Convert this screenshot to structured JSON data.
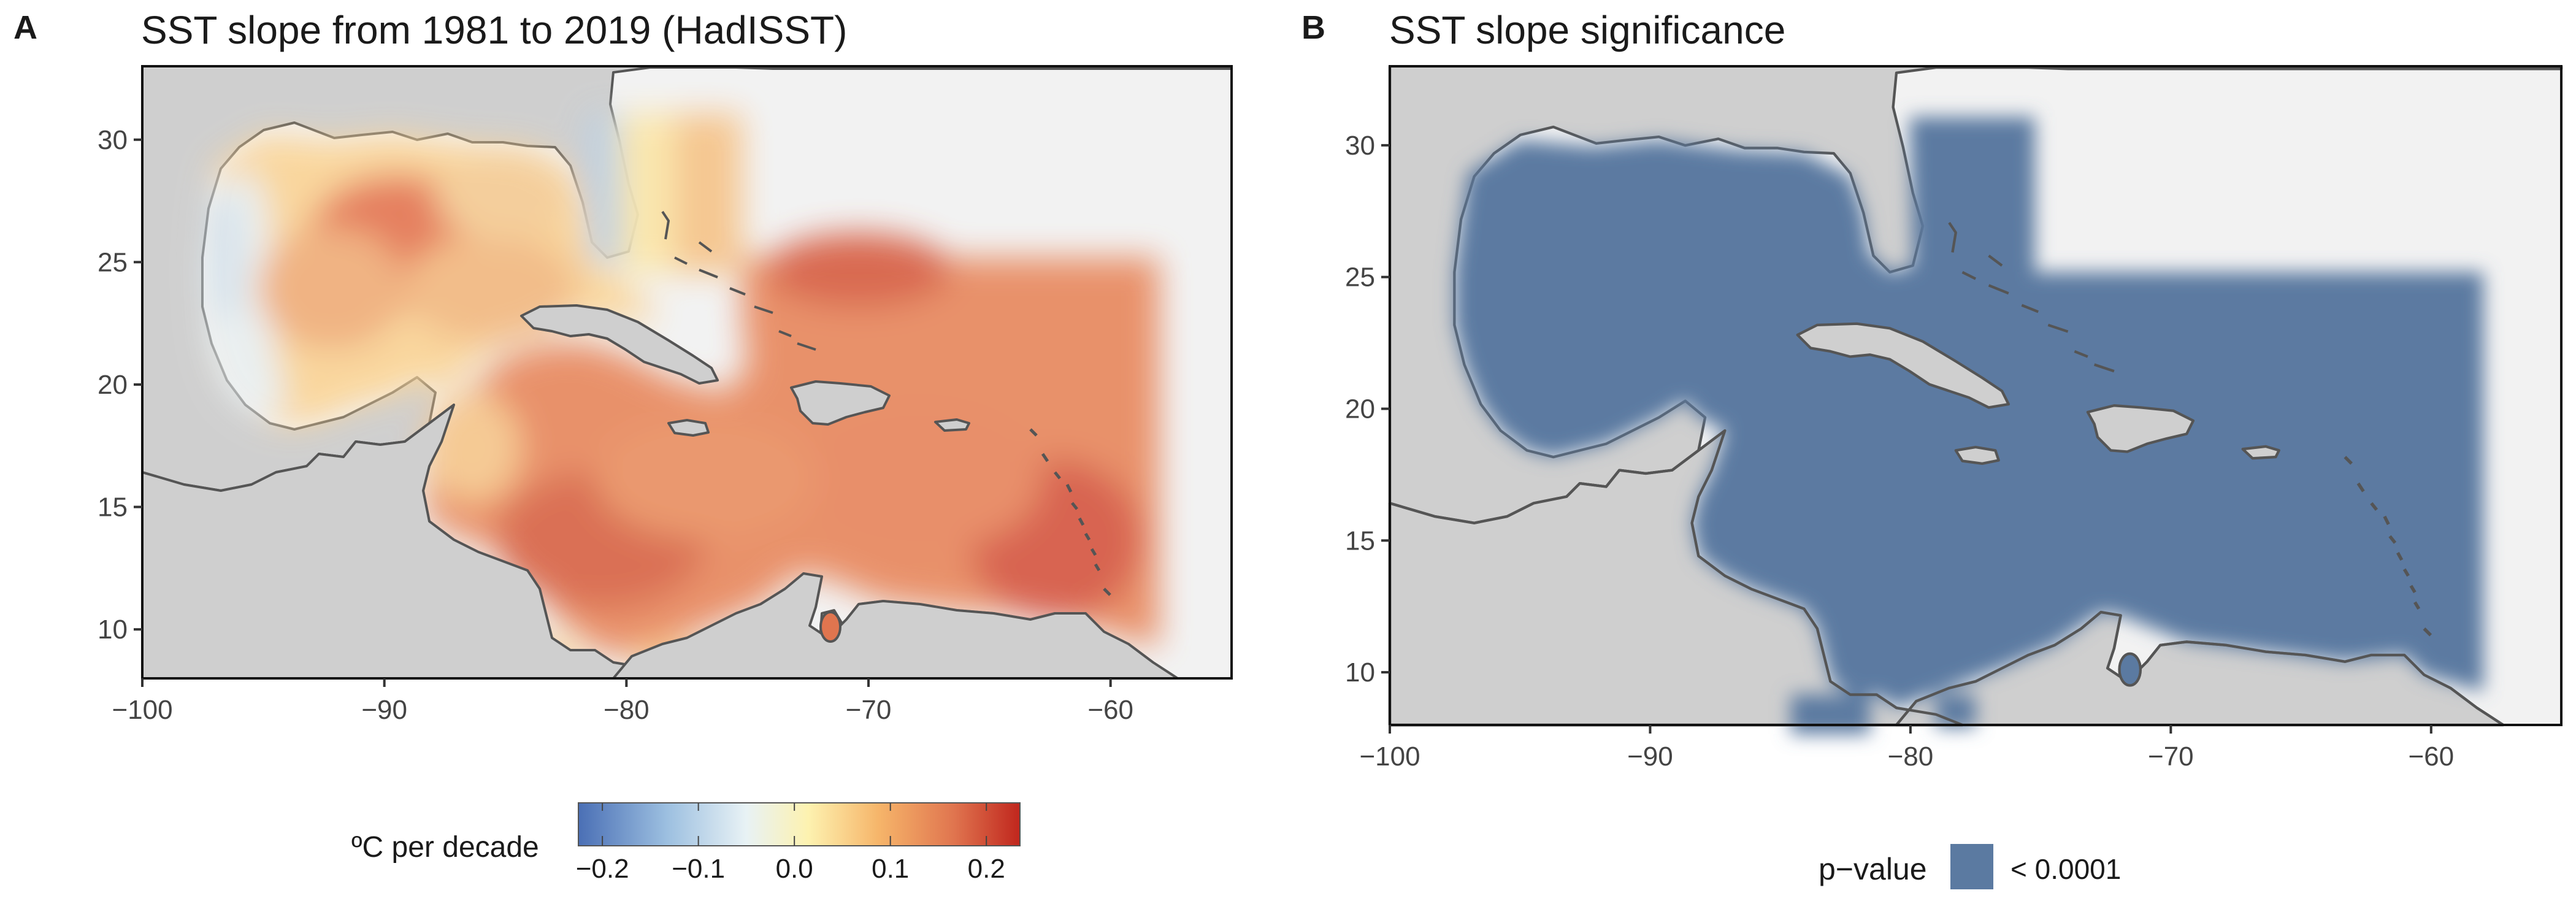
{
  "panels": [
    {
      "letter": "A",
      "title": "SST slope from 1981 to 2019 (HadISST)",
      "x_ticks": [
        "−100",
        "−90",
        "−80",
        "−70",
        "−60"
      ],
      "y_ticks": [
        "10",
        "15",
        "20",
        "25",
        "30"
      ],
      "x_ticks_values": [
        -100,
        -90,
        -80,
        -70,
        -60
      ],
      "y_ticks_values": [
        10,
        15,
        20,
        25,
        30
      ]
    },
    {
      "letter": "B",
      "title": "SST slope significance",
      "x_ticks": [
        "−100",
        "−90",
        "−80",
        "−70",
        "−60"
      ],
      "y_ticks": [
        "10",
        "15",
        "20",
        "25",
        "30"
      ],
      "x_ticks_values": [
        -100,
        -90,
        -80,
        -70,
        -60
      ],
      "y_ticks_values": [
        10,
        15,
        20,
        25,
        30
      ]
    }
  ],
  "colorbar": {
    "title": "ºC per decade",
    "tick_labels": [
      "−0.2",
      "−0.1",
      "0.0",
      "0.1",
      "0.2"
    ],
    "tick_values": [
      -0.2,
      -0.1,
      0.0,
      0.1,
      0.2
    ],
    "range": [
      -0.225,
      0.235
    ],
    "colors": [
      "#4a6fb5",
      "#9cbfe0",
      "#e8f2f5",
      "#fdf2b0",
      "#f6b56a",
      "#e0754f",
      "#c0261d"
    ]
  },
  "legend": {
    "title": "p−value",
    "label": "< 0.0001",
    "color": "#5b7aa1"
  },
  "map_colors": {
    "land": "#cfcfcf",
    "ocean_background": "#f2f2f2",
    "coast": "#555555",
    "significance_fill": "#5b7aa1"
  },
  "chart_data": {
    "type": "heatmap",
    "extent_lon": [
      -100,
      -55
    ],
    "extent_lat": [
      8,
      33
    ],
    "panels": [
      "SST slope from 1981 to 2019 (HadISST)",
      "SST slope significance"
    ],
    "units": "ºC per decade"
  }
}
